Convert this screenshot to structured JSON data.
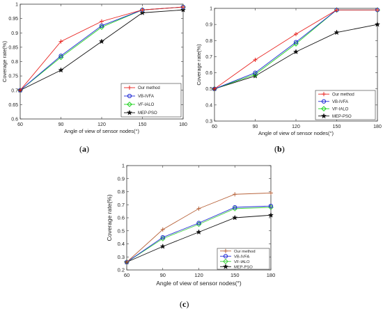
{
  "captions": {
    "a": "a",
    "b": "b",
    "c": "c"
  },
  "styles": {
    "series_colors": [
      "#e8231f",
      "#1f2ad4",
      "#1ed21e",
      "#111111"
    ],
    "series_colors_c": [
      "#b8643c",
      "#1f2ad4",
      "#3ed23e",
      "#111111"
    ],
    "markers": [
      "plus",
      "circle",
      "diamond",
      "star"
    ]
  },
  "chart_data": [
    {
      "id": "a",
      "type": "line",
      "xlabel": "Angle of view of sensor nodes(°)",
      "ylabel": "Coverage rate(%)",
      "x": [
        60,
        90,
        120,
        150,
        180
      ],
      "xlim": [
        60,
        180
      ],
      "ylim": [
        0.6,
        1.0
      ],
      "yticks": [
        "0.6",
        "0.65",
        "0.7",
        "0.75",
        "0.8",
        "0.85",
        "0.9",
        "0.95",
        "1"
      ],
      "xticks": [
        "60",
        "90",
        "120",
        "150",
        "180"
      ],
      "legend_position": "bottom-right",
      "grid": false,
      "series": [
        {
          "name": "Our method",
          "values": [
            0.7,
            0.87,
            0.94,
            0.98,
            0.99
          ]
        },
        {
          "name": "VB-IVFA",
          "values": [
            0.7,
            0.82,
            0.925,
            0.98,
            0.99
          ]
        },
        {
          "name": "VF-IALO",
          "values": [
            0.7,
            0.815,
            0.92,
            0.98,
            0.99
          ]
        },
        {
          "name": "MEP-PSO",
          "values": [
            0.7,
            0.77,
            0.87,
            0.97,
            0.98
          ]
        }
      ]
    },
    {
      "id": "b",
      "type": "line",
      "xlabel": "Angle of view of sensor nodes(°)",
      "ylabel": "Coverage rate(%)",
      "x": [
        60,
        90,
        120,
        150,
        180
      ],
      "xlim": [
        60,
        180
      ],
      "ylim": [
        0.3,
        1.0
      ],
      "yticks": [
        "0.3",
        "0.4",
        "0.5",
        "0.6",
        "0.7",
        "0.8",
        "0.9",
        "1"
      ],
      "xticks": [
        "60",
        "90",
        "120",
        "150",
        "180"
      ],
      "legend_position": "bottom-right",
      "grid": false,
      "series": [
        {
          "name": "Our method",
          "values": [
            0.5,
            0.68,
            0.84,
            0.99,
            0.99
          ]
        },
        {
          "name": "VB-IVFA",
          "values": [
            0.5,
            0.6,
            0.79,
            0.99,
            0.99
          ]
        },
        {
          "name": "VF-IALO",
          "values": [
            0.5,
            0.59,
            0.78,
            0.99,
            0.99
          ]
        },
        {
          "name": "MEP-PSO",
          "values": [
            0.5,
            0.58,
            0.73,
            0.85,
            0.9
          ]
        }
      ]
    },
    {
      "id": "c",
      "type": "line",
      "xlabel": "Angle of view of sensor nodes(°)",
      "ylabel": "Coverage rate(%)",
      "x": [
        60,
        90,
        120,
        150,
        180
      ],
      "xlim": [
        60,
        180
      ],
      "ylim": [
        0.2,
        1.0
      ],
      "yticks": [
        "0.2",
        "0.3",
        "0.4",
        "0.5",
        "0.6",
        "0.7",
        "0.8",
        "0.9",
        "1"
      ],
      "xticks": [
        "60",
        "90",
        "120",
        "150",
        "180"
      ],
      "legend_position": "bottom-right",
      "grid": false,
      "series": [
        {
          "name": "Our method",
          "values": [
            0.26,
            0.51,
            0.67,
            0.78,
            0.79
          ]
        },
        {
          "name": "VB-IVFA",
          "values": [
            0.26,
            0.45,
            0.56,
            0.68,
            0.69
          ]
        },
        {
          "name": "VF-IALO",
          "values": [
            0.26,
            0.44,
            0.55,
            0.67,
            0.68
          ]
        },
        {
          "name": "MEP-PSO",
          "values": [
            0.26,
            0.38,
            0.49,
            0.6,
            0.62
          ]
        }
      ]
    }
  ]
}
